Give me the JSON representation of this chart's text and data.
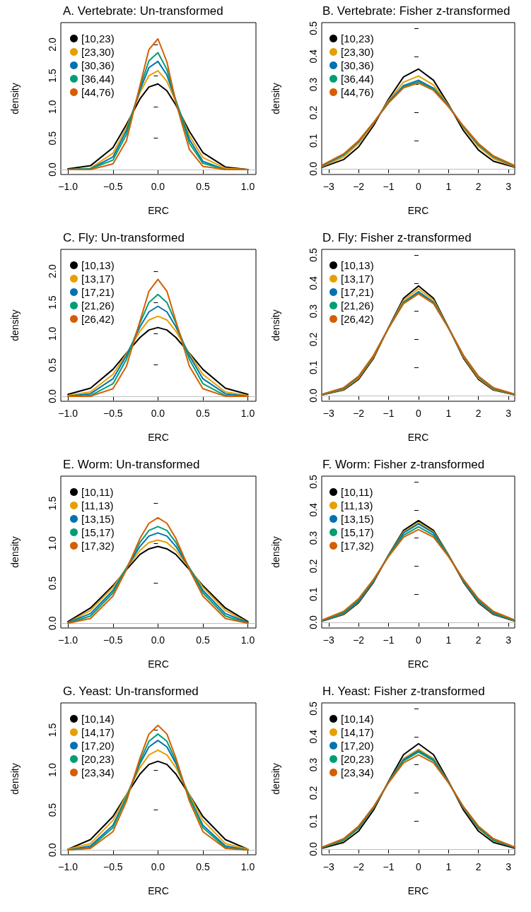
{
  "chart_data": [
    {
      "type": "line",
      "title": "A. Vertebrate: Un-transformed",
      "xlabel": "ERC",
      "ylabel": "density",
      "legend": "top left",
      "x": [
        -1,
        -0.75,
        -0.5,
        -0.35,
        -0.2,
        -0.1,
        0,
        0.1,
        0.2,
        0.35,
        0.5,
        0.75,
        1
      ],
      "xlim": [
        -1.08,
        1.09
      ],
      "ylim": [
        -0.08,
        2.35
      ],
      "xticks": [
        {
          "value": -1,
          "label": "−1.0"
        },
        {
          "value": -0.5,
          "label": "−0.5"
        },
        {
          "value": 0,
          "label": "0.0"
        },
        {
          "value": 0.5,
          "label": "0.5"
        },
        {
          "value": 1,
          "label": "1.0"
        }
      ],
      "yticks": [
        {
          "value": 0,
          "label": "0.0"
        },
        {
          "value": 0.5,
          "label": "0.5"
        },
        {
          "value": 1,
          "label": "1.0"
        },
        {
          "value": 1.5,
          "label": "1.5"
        },
        {
          "value": 2,
          "label": "2.0"
        }
      ],
      "ref_lines": [
        {
          "axis": "y",
          "value": 0,
          "color": "#bebebe"
        }
      ],
      "series": [
        {
          "name": "[10,23)",
          "color": "#000000",
          "values": [
            0.01,
            0.06,
            0.35,
            0.72,
            1.13,
            1.32,
            1.37,
            1.26,
            1.03,
            0.61,
            0.27,
            0.04,
            0.0
          ]
        },
        {
          "name": "[23,30)",
          "color": "#e69f00",
          "values": [
            0.0,
            0.02,
            0.26,
            0.67,
            1.23,
            1.5,
            1.58,
            1.41,
            1.08,
            0.54,
            0.19,
            0.02,
            0.0
          ]
        },
        {
          "name": "[30,36)",
          "color": "#0072b2",
          "values": [
            0.0,
            0.01,
            0.2,
            0.62,
            1.27,
            1.63,
            1.73,
            1.51,
            1.1,
            0.48,
            0.13,
            0.0,
            0.0
          ]
        },
        {
          "name": "[36,44)",
          "color": "#009e73",
          "values": [
            0.0,
            0.01,
            0.15,
            0.56,
            1.31,
            1.74,
            1.87,
            1.6,
            1.1,
            0.42,
            0.1,
            0.0,
            0.0
          ]
        },
        {
          "name": "[44,76)",
          "color": "#d55e00",
          "values": [
            0.0,
            0.0,
            0.09,
            0.46,
            1.34,
            1.92,
            2.09,
            1.72,
            1.07,
            0.32,
            0.05,
            0.0,
            0.0
          ]
        }
      ]
    },
    {
      "type": "line",
      "title": "B. Vertebrate: Fisher z-transformed",
      "xlabel": "ERC",
      "ylabel": "density",
      "legend": "top left",
      "x": [
        -3.2,
        -2.5,
        -2,
        -1.5,
        -1,
        -0.5,
        0,
        0.5,
        1,
        1.5,
        2,
        2.5,
        3.2
      ],
      "xlim": [
        -3.23,
        3.21
      ],
      "ylim": [
        -0.02,
        0.52
      ],
      "xticks": [
        {
          "value": -3,
          "label": "−3"
        },
        {
          "value": -2,
          "label": "−2"
        },
        {
          "value": -1,
          "label": "−1"
        },
        0,
        1,
        2,
        3
      ],
      "yticks": [
        {
          "value": 0,
          "label": "0.0"
        },
        0.1,
        0.2,
        0.3,
        0.4,
        0.5
      ],
      "ref_lines": [
        {
          "axis": "y",
          "value": 0,
          "color": "#bebebe"
        }
      ],
      "series": [
        {
          "name": "[10,23)",
          "color": "#000000",
          "values": [
            0.006,
            0.033,
            0.078,
            0.154,
            0.248,
            0.327,
            0.355,
            0.315,
            0.229,
            0.136,
            0.067,
            0.027,
            0.006
          ]
        },
        {
          "name": "[23,30)",
          "color": "#e69f00",
          "values": [
            0.009,
            0.042,
            0.09,
            0.161,
            0.243,
            0.308,
            0.33,
            0.298,
            0.226,
            0.146,
            0.079,
            0.036,
            0.008
          ]
        },
        {
          "name": "[30,36)",
          "color": "#0072b2",
          "values": [
            0.012,
            0.049,
            0.096,
            0.164,
            0.238,
            0.296,
            0.315,
            0.287,
            0.224,
            0.149,
            0.085,
            0.042,
            0.01
          ]
        },
        {
          "name": "[36,44)",
          "color": "#009e73",
          "values": [
            0.013,
            0.051,
            0.098,
            0.164,
            0.236,
            0.291,
            0.31,
            0.283,
            0.222,
            0.15,
            0.087,
            0.044,
            0.011
          ]
        },
        {
          "name": "[44,76)",
          "color": "#d55e00",
          "values": [
            0.014,
            0.053,
            0.1,
            0.165,
            0.234,
            0.288,
            0.305,
            0.279,
            0.221,
            0.152,
            0.09,
            0.046,
            0.012
          ]
        }
      ]
    },
    {
      "type": "line",
      "title": "C. Fly: Un-transformed",
      "xlabel": "ERC",
      "ylabel": "density",
      "legend": "top left",
      "x": [
        -1,
        -0.75,
        -0.5,
        -0.35,
        -0.2,
        -0.1,
        0,
        0.1,
        0.2,
        0.35,
        0.5,
        0.75,
        1
      ],
      "xlim": [
        -1.08,
        1.09
      ],
      "ylim": [
        -0.08,
        2.35
      ],
      "xticks": [
        {
          "value": -1,
          "label": "−1.0"
        },
        {
          "value": -0.5,
          "label": "−0.5"
        },
        {
          "value": 0,
          "label": "0.0"
        },
        {
          "value": 0.5,
          "label": "0.5"
        },
        {
          "value": 1,
          "label": "1.0"
        }
      ],
      "yticks": [
        {
          "value": 0,
          "label": "0.0"
        },
        {
          "value": 0.5,
          "label": "0.5"
        },
        {
          "value": 1,
          "label": "1.0"
        },
        {
          "value": 1.5,
          "label": "1.5"
        },
        {
          "value": 2,
          "label": "2.0"
        }
      ],
      "ref_lines": [
        {
          "axis": "y",
          "value": 0,
          "color": "#bebebe"
        }
      ],
      "series": [
        {
          "name": "[10,13)",
          "color": "#000000",
          "values": [
            0.03,
            0.13,
            0.43,
            0.69,
            0.94,
            1.06,
            1.1,
            1.06,
            0.94,
            0.69,
            0.43,
            0.13,
            0.03
          ]
        },
        {
          "name": "[13,17)",
          "color": "#e69f00",
          "values": [
            0.01,
            0.07,
            0.35,
            0.68,
            1.04,
            1.22,
            1.28,
            1.22,
            1.04,
            0.68,
            0.35,
            0.07,
            0.01
          ]
        },
        {
          "name": "[17,21)",
          "color": "#0072b2",
          "values": [
            0.0,
            0.04,
            0.28,
            0.65,
            1.11,
            1.35,
            1.44,
            1.35,
            1.11,
            0.65,
            0.28,
            0.04,
            0.0
          ]
        },
        {
          "name": "[21,26)",
          "color": "#009e73",
          "values": [
            0.0,
            0.01,
            0.2,
            0.59,
            1.17,
            1.5,
            1.63,
            1.5,
            1.17,
            0.59,
            0.2,
            0.01,
            0.0
          ]
        },
        {
          "name": "[26,42)",
          "color": "#d55e00",
          "values": [
            0.0,
            0.0,
            0.12,
            0.48,
            1.2,
            1.68,
            1.87,
            1.68,
            1.2,
            0.48,
            0.12,
            0.0,
            0.0
          ]
        }
      ]
    },
    {
      "type": "line",
      "title": "D. Fly: Fisher z-transformed",
      "xlabel": "ERC",
      "ylabel": "density",
      "legend": "top left",
      "x": [
        -3.2,
        -2.5,
        -2,
        -1.5,
        -1,
        -0.5,
        0,
        0.5,
        1,
        1.5,
        2,
        2.5,
        3.2
      ],
      "xlim": [
        -3.23,
        3.21
      ],
      "ylim": [
        -0.02,
        0.52
      ],
      "xticks": [
        {
          "value": -3,
          "label": "−3"
        },
        {
          "value": -2,
          "label": "−2"
        },
        {
          "value": -1,
          "label": "−1"
        },
        0,
        1,
        2,
        3
      ],
      "yticks": [
        {
          "value": 0,
          "label": "0.0"
        },
        0.1,
        0.2,
        0.3,
        0.4,
        0.5
      ],
      "ref_lines": [
        {
          "axis": "y",
          "value": 0,
          "color": "#bebebe"
        }
      ],
      "series": [
        {
          "name": "[10,13)",
          "color": "#000000",
          "values": [
            0.003,
            0.02,
            0.058,
            0.133,
            0.242,
            0.346,
            0.39,
            0.346,
            0.242,
            0.133,
            0.058,
            0.02,
            0.003
          ]
        },
        {
          "name": "[13,17)",
          "color": "#e69f00",
          "values": [
            0.004,
            0.022,
            0.062,
            0.137,
            0.241,
            0.339,
            0.38,
            0.339,
            0.241,
            0.137,
            0.062,
            0.022,
            0.004
          ]
        },
        {
          "name": "[17,21)",
          "color": "#0072b2",
          "values": [
            0.004,
            0.025,
            0.066,
            0.141,
            0.241,
            0.332,
            0.37,
            0.332,
            0.241,
            0.141,
            0.066,
            0.025,
            0.004
          ]
        },
        {
          "name": "[21,26)",
          "color": "#009e73",
          "values": [
            0.005,
            0.027,
            0.068,
            0.142,
            0.24,
            0.329,
            0.365,
            0.329,
            0.24,
            0.142,
            0.068,
            0.027,
            0.005
          ]
        },
        {
          "name": "[26,42)",
          "color": "#d55e00",
          "values": [
            0.005,
            0.028,
            0.069,
            0.143,
            0.24,
            0.327,
            0.362,
            0.327,
            0.24,
            0.143,
            0.069,
            0.028,
            0.005
          ]
        }
      ]
    },
    {
      "type": "line",
      "title": "E. Worm: Un-transformed",
      "xlabel": "ERC",
      "ylabel": "density",
      "legend": "top left",
      "x": [
        -1,
        -0.75,
        -0.5,
        -0.35,
        -0.2,
        -0.1,
        0,
        0.1,
        0.2,
        0.35,
        0.5,
        0.75,
        1
      ],
      "xlim": [
        -1.08,
        1.09
      ],
      "ylim": [
        -0.06,
        1.84
      ],
      "xticks": [
        {
          "value": -1,
          "label": "−1.0"
        },
        {
          "value": -0.5,
          "label": "−0.5"
        },
        {
          "value": 0,
          "label": "0.0"
        },
        {
          "value": 0.5,
          "label": "0.5"
        },
        {
          "value": 1,
          "label": "1.0"
        }
      ],
      "yticks": [
        {
          "value": 0,
          "label": "0.0"
        },
        {
          "value": 0.5,
          "label": "0.5"
        },
        {
          "value": 1,
          "label": "1.0"
        },
        {
          "value": 1.5,
          "label": "1.5"
        }
      ],
      "ref_lines": [
        {
          "axis": "y",
          "value": 0,
          "color": "#bebebe"
        }
      ],
      "series": [
        {
          "name": "[10,11)",
          "color": "#000000",
          "values": [
            0.02,
            0.19,
            0.47,
            0.67,
            0.86,
            0.93,
            0.96,
            0.93,
            0.86,
            0.67,
            0.47,
            0.19,
            0.02
          ]
        },
        {
          "name": "[11,13)",
          "color": "#e69f00",
          "values": [
            0.01,
            0.16,
            0.45,
            0.69,
            0.91,
            1.01,
            1.04,
            1.01,
            0.91,
            0.69,
            0.45,
            0.16,
            0.01
          ]
        },
        {
          "name": "[13,15)",
          "color": "#0072b2",
          "values": [
            0.01,
            0.12,
            0.41,
            0.69,
            0.96,
            1.09,
            1.13,
            1.09,
            0.96,
            0.69,
            0.41,
            0.12,
            0.01
          ]
        },
        {
          "name": "[15,17)",
          "color": "#009e73",
          "values": [
            0.0,
            0.09,
            0.38,
            0.69,
            1.01,
            1.16,
            1.21,
            1.16,
            1.01,
            0.69,
            0.38,
            0.09,
            0.0
          ]
        },
        {
          "name": "[17,32)",
          "color": "#d55e00",
          "values": [
            0.0,
            0.06,
            0.34,
            0.67,
            1.06,
            1.25,
            1.32,
            1.25,
            1.06,
            0.67,
            0.34,
            0.06,
            0.0
          ]
        }
      ]
    },
    {
      "type": "line",
      "title": "F. Worm: Fisher z-transformed",
      "xlabel": "ERC",
      "ylabel": "density",
      "legend": "top left",
      "x": [
        -3.2,
        -2.5,
        -2,
        -1.5,
        -1,
        -0.5,
        0,
        0.5,
        1,
        1.5,
        2,
        2.5,
        3.2
      ],
      "xlim": [
        -3.23,
        3.21
      ],
      "ylim": [
        -0.02,
        0.52
      ],
      "xticks": [
        {
          "value": -3,
          "label": "−3"
        },
        {
          "value": -2,
          "label": "−2"
        },
        {
          "value": -1,
          "label": "−1"
        },
        0,
        1,
        2,
        3
      ],
      "yticks": [
        {
          "value": 0,
          "label": "0.0"
        },
        0.1,
        0.2,
        0.3,
        0.4,
        0.5
      ],
      "ref_lines": [
        {
          "axis": "y",
          "value": 0,
          "color": "#bebebe"
        }
      ],
      "series": [
        {
          "name": "[10,11)",
          "color": "#000000",
          "values": [
            0.005,
            0.028,
            0.07,
            0.143,
            0.24,
            0.327,
            0.362,
            0.327,
            0.24,
            0.143,
            0.07,
            0.028,
            0.005
          ]
        },
        {
          "name": "[11,13)",
          "color": "#e69f00",
          "values": [
            0.006,
            0.03,
            0.073,
            0.146,
            0.239,
            0.322,
            0.355,
            0.322,
            0.239,
            0.146,
            0.073,
            0.03,
            0.006
          ]
        },
        {
          "name": "[13,15)",
          "color": "#0072b2",
          "values": [
            0.006,
            0.032,
            0.075,
            0.147,
            0.238,
            0.318,
            0.35,
            0.318,
            0.238,
            0.147,
            0.075,
            0.032,
            0.006
          ]
        },
        {
          "name": "[15,17)",
          "color": "#009e73",
          "values": [
            0.007,
            0.035,
            0.08,
            0.15,
            0.237,
            0.31,
            0.34,
            0.31,
            0.237,
            0.15,
            0.08,
            0.035,
            0.007
          ]
        },
        {
          "name": "[17,32)",
          "color": "#d55e00",
          "values": [
            0.009,
            0.039,
            0.084,
            0.153,
            0.234,
            0.303,
            0.33,
            0.303,
            0.234,
            0.153,
            0.084,
            0.039,
            0.009
          ]
        }
      ]
    },
    {
      "type": "line",
      "title": "G. Yeast: Un-transformed",
      "xlabel": "ERC",
      "ylabel": "density",
      "legend": "top left",
      "x": [
        -1,
        -0.75,
        -0.5,
        -0.35,
        -0.2,
        -0.1,
        0,
        0.1,
        0.2,
        0.35,
        0.5,
        0.75,
        1
      ],
      "xlim": [
        -1.08,
        1.09
      ],
      "ylim": [
        -0.06,
        1.84
      ],
      "xticks": [
        {
          "value": -1,
          "label": "−1.0"
        },
        {
          "value": -0.5,
          "label": "−0.5"
        },
        {
          "value": 0,
          "label": "0.0"
        },
        {
          "value": 0.5,
          "label": "0.5"
        },
        {
          "value": 1,
          "label": "1.0"
        }
      ],
      "yticks": [
        {
          "value": 0,
          "label": "0.0"
        },
        {
          "value": 0.5,
          "label": "0.5"
        },
        {
          "value": 1,
          "label": "1.0"
        },
        {
          "value": 1.5,
          "label": "1.5"
        }
      ],
      "ref_lines": [
        {
          "axis": "y",
          "value": 0,
          "color": "#bebebe"
        }
      ],
      "series": [
        {
          "name": "[10,14)",
          "color": "#000000",
          "values": [
            0.01,
            0.13,
            0.42,
            0.69,
            0.95,
            1.07,
            1.11,
            1.07,
            0.95,
            0.69,
            0.42,
            0.13,
            0.01
          ]
        },
        {
          "name": "[14,17)",
          "color": "#e69f00",
          "values": [
            0.01,
            0.08,
            0.37,
            0.69,
            1.03,
            1.19,
            1.25,
            1.19,
            1.03,
            0.69,
            0.37,
            0.08,
            0.01
          ]
        },
        {
          "name": "[17,20)",
          "color": "#0072b2",
          "values": [
            0.0,
            0.05,
            0.31,
            0.66,
            1.08,
            1.29,
            1.37,
            1.29,
            1.08,
            0.66,
            0.31,
            0.05,
            0.0
          ]
        },
        {
          "name": "[20,23)",
          "color": "#009e73",
          "values": [
            0.0,
            0.03,
            0.28,
            0.65,
            1.11,
            1.36,
            1.45,
            1.36,
            1.11,
            0.65,
            0.28,
            0.03,
            0.0
          ]
        },
        {
          "name": "[23,34)",
          "color": "#d55e00",
          "values": [
            0.0,
            0.02,
            0.23,
            0.61,
            1.15,
            1.45,
            1.56,
            1.45,
            1.15,
            0.61,
            0.23,
            0.02,
            0.0
          ]
        }
      ]
    },
    {
      "type": "line",
      "title": "H. Yeast: Fisher z-transformed",
      "xlabel": "ERC",
      "ylabel": "density",
      "legend": "top left",
      "x": [
        -3.2,
        -2.5,
        -2,
        -1.5,
        -1,
        -0.5,
        0,
        0.5,
        1,
        1.5,
        2,
        2.5,
        3.2
      ],
      "xlim": [
        -3.23,
        3.21
      ],
      "ylim": [
        -0.02,
        0.52
      ],
      "xticks": [
        {
          "value": -3,
          "label": "−3"
        },
        {
          "value": -2,
          "label": "−2"
        },
        {
          "value": -1,
          "label": "−1"
        },
        0,
        1,
        2,
        3
      ],
      "yticks": [
        {
          "value": 0,
          "label": "0.0"
        },
        0.1,
        0.2,
        0.3,
        0.4,
        0.5
      ],
      "ref_lines": [
        {
          "axis": "y",
          "value": 0,
          "color": "#bebebe"
        }
      ],
      "series": [
        {
          "name": "[10,14)",
          "color": "#000000",
          "values": [
            0.004,
            0.024,
            0.064,
            0.139,
            0.241,
            0.336,
            0.375,
            0.336,
            0.241,
            0.139,
            0.064,
            0.024,
            0.004
          ]
        },
        {
          "name": "[14,17)",
          "color": "#e69f00",
          "values": [
            0.006,
            0.03,
            0.073,
            0.146,
            0.239,
            0.322,
            0.355,
            0.322,
            0.239,
            0.146,
            0.073,
            0.03,
            0.006
          ]
        },
        {
          "name": "[17,20)",
          "color": "#0072b2",
          "values": [
            0.006,
            0.032,
            0.075,
            0.147,
            0.238,
            0.318,
            0.35,
            0.318,
            0.238,
            0.147,
            0.075,
            0.032,
            0.006
          ]
        },
        {
          "name": "[20,23)",
          "color": "#009e73",
          "values": [
            0.007,
            0.033,
            0.077,
            0.149,
            0.237,
            0.314,
            0.345,
            0.314,
            0.237,
            0.149,
            0.077,
            0.033,
            0.007
          ]
        },
        {
          "name": "[23,34)",
          "color": "#d55e00",
          "values": [
            0.008,
            0.037,
            0.082,
            0.151,
            0.236,
            0.307,
            0.335,
            0.307,
            0.236,
            0.151,
            0.082,
            0.037,
            0.008
          ]
        }
      ]
    }
  ]
}
